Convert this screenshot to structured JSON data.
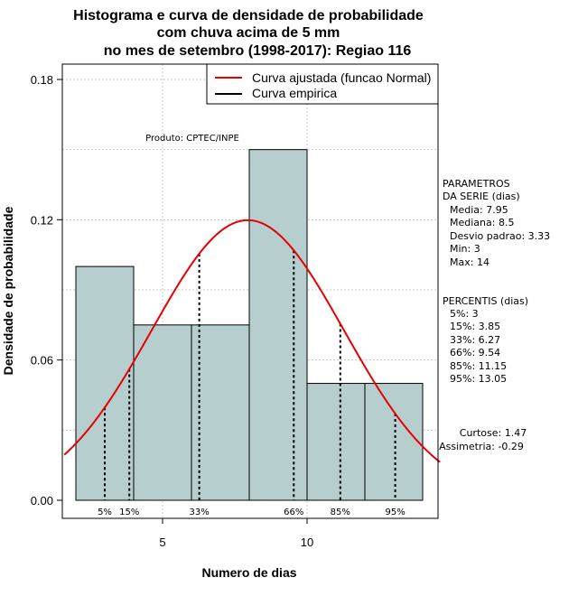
{
  "chart_data": {
    "type": "histogram",
    "title_lines": [
      "Histograma e curva de densidade de probabilidade",
      "com chuva acima de 5 mm",
      "no mes de setembro (1998-2017): Regiao 116"
    ],
    "xlabel": "Numero de dias",
    "ylabel": "Densidade de probabilidade",
    "xlim": [
      1.6,
      14.6
    ],
    "ylim": [
      0,
      0.18
    ],
    "x_ticks": [
      5,
      10
    ],
    "y_ticks": [
      0.0,
      0.06,
      0.12,
      0.18
    ],
    "y_tick_labels": [
      "0.00",
      "0.06",
      "0.12",
      "0.18"
    ],
    "bins": [
      {
        "x0": 2,
        "x1": 4,
        "density": 0.1
      },
      {
        "x0": 4,
        "x1": 6,
        "density": 0.075
      },
      {
        "x0": 6,
        "x1": 8,
        "density": 0.075
      },
      {
        "x0": 8,
        "x1": 10,
        "density": 0.15
      },
      {
        "x0": 10,
        "x1": 12,
        "density": 0.05
      },
      {
        "x0": 12,
        "x1": 14,
        "density": 0.05
      }
    ],
    "fit": {
      "type": "normal",
      "mean": 7.95,
      "sd": 3.33
    },
    "percentile_lines": [
      {
        "label": "5%",
        "x": 3
      },
      {
        "label": "15%",
        "x": 3.85
      },
      {
        "label": "33%",
        "x": 6.27
      },
      {
        "label": "66%",
        "x": 9.54
      },
      {
        "label": "85%",
        "x": 11.15
      },
      {
        "label": "95%",
        "x": 13.05
      }
    ],
    "legend": [
      {
        "label": "Curva ajustada (funcao Normal)",
        "color": "#e60000"
      },
      {
        "label": "Curva empirica",
        "color": "#000000"
      }
    ],
    "annotation": "Produto: CPTEC/INPE",
    "bar_color": "#b6cece",
    "curve_color": "#e60000",
    "side_panel": {
      "params_title_1": "PARAMETROS",
      "params_title_2": "DA SERIE (dias)",
      "params": [
        "Media: 7.95",
        "Mediana: 8.5",
        "Desvio padrao: 3.33",
        "Min: 3",
        "Max: 14"
      ],
      "percentis_title": "PERCENTIS (dias)",
      "percentis": [
        "5%: 3",
        "15%: 3.85",
        "33%: 6.27",
        "66%: 9.54",
        "85%: 11.15",
        "95%: 13.05"
      ],
      "curtose": "Curtose: 1.47",
      "assimetria": "Assimetria: -0.29"
    }
  }
}
